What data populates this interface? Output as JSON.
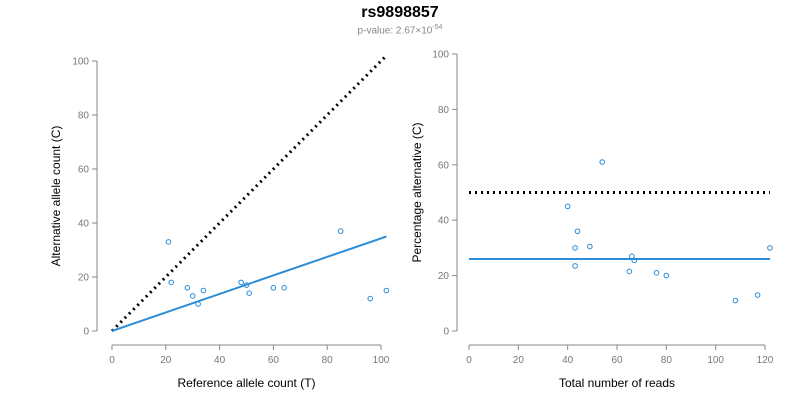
{
  "header": {
    "title": "rs9898857",
    "subtitle_prefix": "p-value: 2.67×10",
    "subtitle_exponent": "-54"
  },
  "colors": {
    "points": "#2b8cd8",
    "fit_line": "#2b8cd8",
    "reference_line": "#000000",
    "axes": "#888888"
  },
  "chart_data": [
    {
      "type": "scatter",
      "xlabel": "Reference allele count (T)",
      "ylabel": "Alternative allele count (C)",
      "xlim": [
        0,
        100
      ],
      "ylim": [
        0,
        100
      ],
      "xticks": [
        0,
        20,
        40,
        60,
        80,
        100
      ],
      "yticks": [
        0,
        20,
        40,
        60,
        80,
        100
      ],
      "points": [
        {
          "x": 21,
          "y": 33
        },
        {
          "x": 22,
          "y": 18
        },
        {
          "x": 28,
          "y": 16
        },
        {
          "x": 30,
          "y": 13
        },
        {
          "x": 32,
          "y": 10
        },
        {
          "x": 34,
          "y": 15
        },
        {
          "x": 48,
          "y": 18
        },
        {
          "x": 50,
          "y": 17
        },
        {
          "x": 51,
          "y": 14
        },
        {
          "x": 60,
          "y": 16
        },
        {
          "x": 64,
          "y": 16
        },
        {
          "x": 85,
          "y": 37
        },
        {
          "x": 96,
          "y": 12
        },
        {
          "x": 102,
          "y": 15
        }
      ],
      "fit_line": {
        "x": [
          0,
          102
        ],
        "y": [
          0,
          35
        ]
      },
      "reference_line": {
        "style": "dotted",
        "x": [
          0,
          102
        ],
        "y": [
          0,
          102
        ]
      }
    },
    {
      "type": "scatter",
      "xlabel": "Total number of reads",
      "ylabel": "Percentage alternative (C)",
      "xlim": [
        0,
        120
      ],
      "ylim": [
        0,
        100
      ],
      "xticks": [
        0,
        20,
        40,
        60,
        80,
        100,
        120
      ],
      "yticks": [
        0,
        20,
        40,
        60,
        80,
        100
      ],
      "points": [
        {
          "x": 40,
          "y": 45
        },
        {
          "x": 43,
          "y": 30
        },
        {
          "x": 43,
          "y": 23.5
        },
        {
          "x": 44,
          "y": 36
        },
        {
          "x": 49,
          "y": 30.5
        },
        {
          "x": 54,
          "y": 61
        },
        {
          "x": 65,
          "y": 21.5
        },
        {
          "x": 66,
          "y": 27
        },
        {
          "x": 67,
          "y": 25.5
        },
        {
          "x": 76,
          "y": 21
        },
        {
          "x": 80,
          "y": 20
        },
        {
          "x": 108,
          "y": 11
        },
        {
          "x": 117,
          "y": 13
        },
        {
          "x": 122,
          "y": 30
        }
      ],
      "fit_line": {
        "x": [
          0,
          122
        ],
        "y": [
          26,
          26
        ]
      },
      "reference_line": {
        "style": "dotted",
        "x": [
          0,
          122
        ],
        "y": [
          50,
          50
        ]
      }
    }
  ]
}
